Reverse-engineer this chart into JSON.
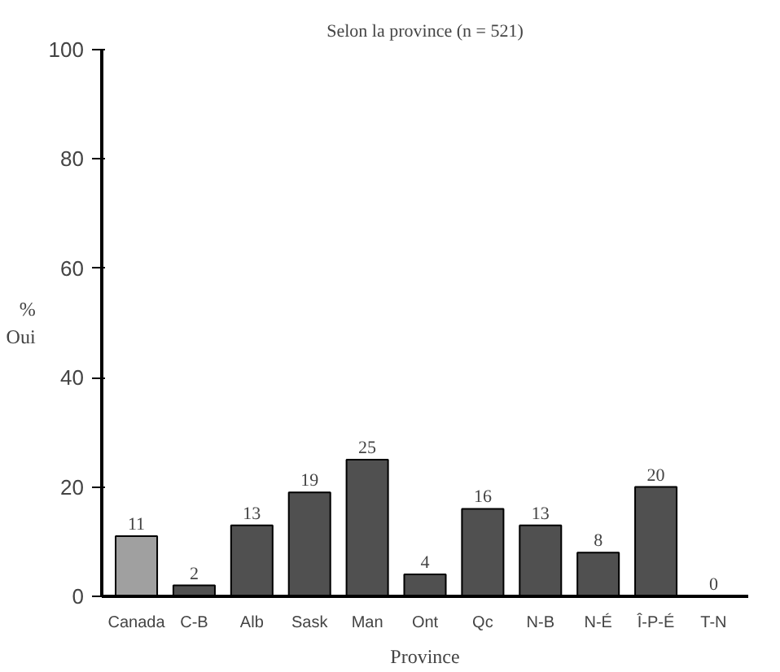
{
  "chart_data": {
    "type": "bar",
    "title": "Selon la province (n = 521)",
    "xlabel": "Province",
    "ylabel": "%\nOui",
    "categories": [
      "Canada",
      "C-B",
      "Alb",
      "Sask",
      "Man",
      "Ont",
      "Qc",
      "N-B",
      "N-É",
      "Î-P-É",
      "T-N"
    ],
    "values": [
      11,
      2,
      13,
      19,
      25,
      4,
      16,
      13,
      8,
      20,
      0
    ],
    "colors": [
      "#a0a0a0",
      "#505050",
      "#505050",
      "#505050",
      "#505050",
      "#505050",
      "#505050",
      "#505050",
      "#505050",
      "#505050",
      "#505050"
    ],
    "ylim": [
      0,
      100
    ],
    "yticks": [
      0,
      20,
      40,
      60,
      80,
      100
    ],
    "data_labels": true,
    "grid": false
  }
}
